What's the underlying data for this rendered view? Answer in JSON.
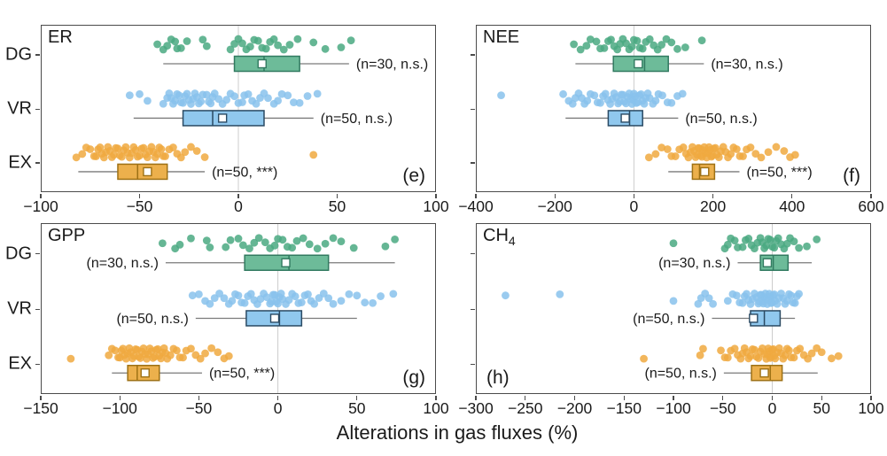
{
  "figure": {
    "xlabel": "Alterations in gas fluxes (%)",
    "categories": [
      "DG",
      "VR",
      "EX"
    ],
    "colors": {
      "DG": {
        "fill": "#6dbb99",
        "edge": "#317a60",
        "dot": "#4aa981"
      },
      "VR": {
        "fill": "#90c8ee",
        "edge": "#2a4a63",
        "dot": "#88c2ec"
      },
      "EX": {
        "fill": "#ecb04c",
        "edge": "#9e7115",
        "dot": "#f0a93f"
      }
    },
    "frame_color": "#4b4b4b",
    "gridline_color": "#cccccc",
    "whisker_color": "#7a7a7a",
    "text_color": "#1a1a1a"
  },
  "chart_data": [
    {
      "id": "e",
      "type": "boxplot-with-points",
      "title": "ER",
      "title_sub": "",
      "corner_label": "(e)",
      "corner_pos": "br",
      "show_ylabels": true,
      "xlim": [
        -100,
        100
      ],
      "ticks": [
        -100,
        -50,
        0,
        50,
        100
      ],
      "groups": [
        {
          "category": "DG",
          "n_label": "(n=30, n.s.)",
          "label_side": "right",
          "box": {
            "q1": -2,
            "median": 13,
            "q3": 31,
            "mean": 12,
            "whisker_lo": -38,
            "whisker_hi": 56
          },
          "points": [
            -41,
            -38,
            -36,
            -34,
            -32,
            -31,
            -29,
            -26,
            -18,
            -16,
            -4,
            -2,
            0,
            2,
            4,
            6,
            8,
            10,
            12,
            14,
            16,
            18,
            20,
            23,
            26,
            30,
            38,
            44,
            52,
            57
          ]
        },
        {
          "category": "VR",
          "n_label": "(n=50, n.s.)",
          "label_side": "right",
          "box": {
            "q1": -28,
            "median": -13,
            "q3": 13,
            "mean": -8,
            "whisker_lo": -53,
            "whisker_hi": 38
          },
          "points": [
            -55,
            -50,
            -46,
            -38,
            -36,
            -35,
            -34,
            -33,
            -32,
            -31,
            -30,
            -29,
            -28,
            -27,
            -26,
            -25,
            -24,
            -23,
            -22,
            -21,
            -20,
            -19,
            -18,
            -16,
            -15,
            -14,
            -13,
            -12,
            -10,
            -8,
            -6,
            -4,
            -2,
            0,
            2,
            3,
            5,
            7,
            9,
            11,
            13,
            15,
            18,
            20,
            22,
            25,
            28,
            31,
            35,
            40
          ]
        },
        {
          "category": "EX",
          "n_label": "(n=50, ***)",
          "label_side": "right",
          "box": {
            "q1": -61,
            "median": -51,
            "q3": -36,
            "mean": -46,
            "whisker_lo": -81,
            "whisker_hi": -17
          },
          "points": [
            -82,
            -79,
            -77,
            -75,
            -73,
            -72,
            -71,
            -70,
            -69,
            -68,
            -67,
            -66,
            -65,
            -64,
            -63,
            -62,
            -61,
            -60,
            -59,
            -58,
            -57,
            -56,
            -55,
            -54,
            -53,
            -52,
            -51,
            -50,
            -49,
            -48,
            -47,
            -46,
            -45,
            -44,
            -43,
            -42,
            -41,
            -40,
            -39,
            -38,
            -37,
            -35,
            -33,
            -31,
            -29,
            -27,
            -24,
            -21,
            -17,
            38
          ]
        }
      ]
    },
    {
      "id": "f",
      "type": "boxplot-with-points",
      "title": "NEE",
      "title_sub": "",
      "corner_label": "(f)",
      "corner_pos": "br",
      "show_ylabels": false,
      "xlim": [
        -400,
        600
      ],
      "ticks": [
        -400,
        -200,
        0,
        200,
        400,
        600
      ],
      "groups": [
        {
          "category": "DG",
          "n_label": "(n=30, n.s.)",
          "label_side": "right",
          "box": {
            "q1": -52,
            "median": 27,
            "q3": 87,
            "mean": 11,
            "whisker_lo": -148,
            "whisker_hi": 177
          },
          "points": [
            -152,
            -135,
            -120,
            -110,
            -95,
            -85,
            -75,
            -65,
            -58,
            -50,
            -42,
            -35,
            -28,
            -20,
            -12,
            -5,
            0,
            8,
            15,
            22,
            30,
            40,
            50,
            60,
            70,
            82,
            95,
            110,
            130,
            172
          ]
        },
        {
          "category": "VR",
          "n_label": "(n=50, n.s.)",
          "label_side": "right",
          "box": {
            "q1": -65,
            "median": -11,
            "q3": 22,
            "mean": -22,
            "whisker_lo": -173,
            "whisker_hi": 112
          },
          "points": [
            -336,
            -179,
            -165,
            -155,
            -148,
            -140,
            -132,
            -125,
            -118,
            -110,
            -100,
            -92,
            -85,
            -78,
            -72,
            -66,
            -60,
            -55,
            -50,
            -45,
            -40,
            -36,
            -32,
            -28,
            -24,
            -20,
            -16,
            -12,
            -8,
            -5,
            -2,
            0,
            3,
            6,
            10,
            14,
            18,
            22,
            26,
            30,
            35,
            40,
            48,
            55,
            62,
            72,
            85,
            95,
            110,
            123
          ]
        },
        {
          "category": "EX",
          "n_label": "(n=50, ***)",
          "label_side": "right",
          "box": {
            "q1": 148,
            "median": 166,
            "q3": 204,
            "mean": 179,
            "whisker_lo": 87,
            "whisker_hi": 267
          },
          "points": [
            38,
            55,
            70,
            85,
            95,
            105,
            115,
            125,
            132,
            138,
            143,
            148,
            152,
            156,
            160,
            163,
            166,
            169,
            172,
            175,
            178,
            181,
            184,
            187,
            190,
            193,
            196,
            199,
            202,
            206,
            210,
            215,
            220,
            226,
            232,
            238,
            245,
            252,
            260,
            268,
            276,
            285,
            295,
            308,
            322,
            340,
            360,
            380,
            395,
            408
          ]
        }
      ]
    },
    {
      "id": "g",
      "type": "boxplot-with-points",
      "title": "GPP",
      "title_sub": "",
      "corner_label": "(g)",
      "corner_pos": "br",
      "show_ylabels": true,
      "xlim": [
        -150,
        100
      ],
      "ticks": [
        -150,
        -100,
        -50,
        0,
        50,
        100
      ],
      "groups": [
        {
          "category": "DG",
          "n_label": "(n=30, n.s.)",
          "label_side": "left",
          "box": {
            "q1": -21,
            "median": 7,
            "q3": 32,
            "mean": 5,
            "whisker_lo": -71,
            "whisker_hi": 74
          },
          "points": [
            -73,
            -65,
            -62,
            -55,
            -45,
            -43,
            -33,
            -30,
            -25,
            -22,
            -18,
            -15,
            -12,
            -8,
            -5,
            -2,
            0,
            3,
            6,
            9,
            12,
            16,
            20,
            25,
            30,
            35,
            40,
            48,
            68,
            74
          ]
        },
        {
          "category": "VR",
          "n_label": "(n=50, n.s.)",
          "label_side": "left",
          "box": {
            "q1": -20,
            "median": 1,
            "q3": 15,
            "mean": -2,
            "whisker_lo": -52,
            "whisker_hi": 50
          },
          "points": [
            -54,
            -50,
            -46,
            -43,
            -40,
            -37,
            -34,
            -31,
            -29,
            -27,
            -25,
            -23,
            -21,
            -19,
            -17,
            -15,
            -13,
            -11,
            -9,
            -7,
            -5,
            -4,
            -3,
            -2,
            -1,
            0,
            1,
            2,
            3,
            5,
            7,
            9,
            11,
            13,
            15,
            17,
            19,
            21,
            23,
            26,
            29,
            32,
            35,
            40,
            45,
            50,
            55,
            60,
            65,
            73
          ]
        },
        {
          "category": "EX",
          "n_label": "(n=50, ***)",
          "label_side": "right",
          "box": {
            "q1": -95,
            "median": -89,
            "q3": -75,
            "mean": -84,
            "whisker_lo": -105,
            "whisker_hi": -48
          },
          "points": [
            -131,
            -107,
            -105,
            -103,
            -101,
            -100,
            -99,
            -98,
            -97,
            -96,
            -95,
            -94,
            -93,
            -92,
            -91,
            -90,
            -89,
            -88,
            -87,
            -86,
            -85,
            -84,
            -83,
            -82,
            -81,
            -80,
            -79,
            -78,
            -77,
            -76,
            -75,
            -74,
            -73,
            -72,
            -71,
            -70,
            -68,
            -66,
            -64,
            -62,
            -60,
            -58,
            -55,
            -52,
            -49,
            -46,
            -42,
            -38,
            -34,
            -31
          ]
        }
      ]
    },
    {
      "id": "h",
      "type": "boxplot-with-points",
      "title": "CH",
      "title_sub": "4",
      "corner_label": "(h)",
      "corner_pos": "bl",
      "show_ylabels": false,
      "xlim": [
        -300,
        100
      ],
      "ticks": [
        -300,
        -250,
        -200,
        -150,
        -100,
        -50,
        0,
        50,
        100
      ],
      "groups": [
        {
          "category": "DG",
          "n_label": "(n=30, n.s.)",
          "label_side": "left",
          "box": {
            "q1": -12,
            "median": 1,
            "q3": 16,
            "mean": -5,
            "whisker_lo": -35,
            "whisker_hi": 40
          },
          "points": [
            -100,
            -48,
            -45,
            -42,
            -38,
            -35,
            -30,
            -27,
            -24,
            -21,
            -18,
            -15,
            -12,
            -10,
            -8,
            -6,
            -4,
            -2,
            0,
            2,
            4,
            6,
            9,
            12,
            15,
            18,
            22,
            27,
            35,
            45
          ]
        },
        {
          "category": "VR",
          "n_label": "(n=50, n.s.)",
          "label_side": "left",
          "box": {
            "q1": -22,
            "median": -8,
            "q3": 8,
            "mean": -19,
            "whisker_lo": -61,
            "whisker_hi": 23
          },
          "points": [
            -270,
            -215,
            -100,
            -75,
            -72,
            -68,
            -64,
            -60,
            -45,
            -40,
            -36,
            -33,
            -30,
            -28,
            -26,
            -24,
            -22,
            -20,
            -18,
            -16,
            -14,
            -13,
            -12,
            -11,
            -10,
            -9,
            -8,
            -7,
            -6,
            -5,
            -4,
            -3,
            -2,
            -1,
            0,
            1,
            2,
            3,
            5,
            7,
            9,
            11,
            13,
            15,
            17,
            19,
            21,
            23,
            25,
            27
          ]
        },
        {
          "category": "EX",
          "n_label": "(n=50, n.s.)",
          "label_side": "left",
          "box": {
            "q1": -21,
            "median": -2,
            "q3": 10,
            "mean": -8,
            "whisker_lo": -49,
            "whisker_hi": 46
          },
          "points": [
            -130,
            -73,
            -70,
            -52,
            -48,
            -45,
            -42,
            -38,
            -35,
            -32,
            -30,
            -28,
            -26,
            -24,
            -22,
            -20,
            -18,
            -16,
            -14,
            -12,
            -10,
            -8,
            -6,
            -5,
            -4,
            -3,
            -2,
            -1,
            0,
            1,
            2,
            3,
            5,
            7,
            9,
            11,
            13,
            15,
            17,
            19,
            22,
            25,
            28,
            32,
            36,
            40,
            45,
            50,
            60,
            67
          ]
        }
      ]
    }
  ]
}
